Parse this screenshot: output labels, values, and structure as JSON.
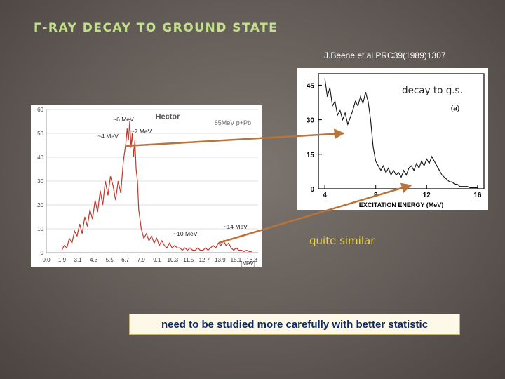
{
  "title": "Γ-RAY DECAY TO GROUND STATE",
  "citation": "J.Beene et al PRC39(1989)1307",
  "decay_label": "decay to g.s.",
  "similar_label": "quite similar",
  "note": "need to be studied more carefully with better statistic",
  "colors": {
    "title": "#c2e089",
    "arrow": "#b8743a",
    "histogram": "#c0392b",
    "note_text": "#0d2a66",
    "similar": "#e8d34a"
  },
  "chart_data": [
    {
      "type": "line",
      "title": "Hector",
      "subtitle": "85MeV p+Pb",
      "xlabel": "[MeV]",
      "ylabel": "",
      "ylim": [
        0,
        60
      ],
      "xlim": [
        0,
        16.5
      ],
      "grid": true,
      "x_ticks": [
        "0.0",
        "1.9",
        "3.1",
        "4.3",
        "5.5",
        "6.7",
        "7.9",
        "9.1",
        "10.3",
        "11.5",
        "12.7",
        "13.9",
        "15.1",
        "16.3"
      ],
      "y_ticks": [
        0,
        10,
        20,
        30,
        40,
        50,
        60
      ],
      "annotations": [
        {
          "text": "~4 MeV",
          "x": 4.0,
          "y": 48
        },
        {
          "text": "~6 MeV",
          "x": 5.2,
          "y": 55
        },
        {
          "text": "~7 MeV",
          "x": 6.6,
          "y": 50
        },
        {
          "text": "~10 MeV",
          "x": 9.9,
          "y": 7
        },
        {
          "text": "~14 MeV",
          "x": 13.8,
          "y": 10
        }
      ],
      "series": [
        {
          "values": [
            [
              1.2,
              1
            ],
            [
              1.4,
              3
            ],
            [
              1.6,
              2
            ],
            [
              1.8,
              6
            ],
            [
              2.0,
              4
            ],
            [
              2.2,
              9
            ],
            [
              2.4,
              7
            ],
            [
              2.6,
              12
            ],
            [
              2.8,
              8
            ],
            [
              3.0,
              15
            ],
            [
              3.2,
              11
            ],
            [
              3.4,
              18
            ],
            [
              3.6,
              14
            ],
            [
              3.8,
              22
            ],
            [
              4.0,
              17
            ],
            [
              4.2,
              26
            ],
            [
              4.4,
              20
            ],
            [
              4.6,
              30
            ],
            [
              4.8,
              24
            ],
            [
              5.0,
              32
            ],
            [
              5.2,
              28
            ],
            [
              5.4,
              22
            ],
            [
              5.6,
              30
            ],
            [
              5.8,
              25
            ],
            [
              6.0,
              38
            ],
            [
              6.1,
              42
            ],
            [
              6.2,
              46
            ],
            [
              6.3,
              52
            ],
            [
              6.4,
              47
            ],
            [
              6.5,
              55
            ],
            [
              6.6,
              44
            ],
            [
              6.7,
              50
            ],
            [
              6.8,
              40
            ],
            [
              6.9,
              47
            ],
            [
              7.0,
              35
            ],
            [
              7.1,
              30
            ],
            [
              7.2,
              18
            ],
            [
              7.4,
              10
            ],
            [
              7.6,
              6
            ],
            [
              7.8,
              8
            ],
            [
              8.0,
              5
            ],
            [
              8.2,
              7
            ],
            [
              8.4,
              4
            ],
            [
              8.6,
              6
            ],
            [
              8.8,
              3
            ],
            [
              9.0,
              5
            ],
            [
              9.2,
              3
            ],
            [
              9.4,
              2
            ],
            [
              9.6,
              4
            ],
            [
              9.8,
              2
            ],
            [
              10.0,
              3
            ],
            [
              10.2,
              2
            ],
            [
              10.4,
              2
            ],
            [
              10.6,
              1
            ],
            [
              10.8,
              2
            ],
            [
              11.0,
              1
            ],
            [
              11.2,
              2
            ],
            [
              11.4,
              1
            ],
            [
              11.6,
              1
            ],
            [
              11.8,
              2
            ],
            [
              12.0,
              1
            ],
            [
              12.2,
              1
            ],
            [
              12.4,
              2
            ],
            [
              12.6,
              1
            ],
            [
              12.8,
              2
            ],
            [
              13.0,
              3
            ],
            [
              13.2,
              2
            ],
            [
              13.4,
              4
            ],
            [
              13.6,
              3
            ],
            [
              13.8,
              5
            ],
            [
              14.0,
              3
            ],
            [
              14.2,
              4
            ],
            [
              14.4,
              2
            ],
            [
              14.6,
              1
            ],
            [
              14.8,
              2
            ],
            [
              15.0,
              1
            ],
            [
              15.2,
              1
            ],
            [
              15.4,
              0.5
            ],
            [
              15.6,
              1
            ],
            [
              15.8,
              0.5
            ],
            [
              16.0,
              0.5
            ]
          ]
        }
      ]
    },
    {
      "type": "line",
      "title": "",
      "xlabel": "EXCITATION ENERGY (MeV)",
      "ylabel": "",
      "legend_text": "(a)",
      "xlim": [
        3.5,
        16.5
      ],
      "ylim": [
        0,
        50
      ],
      "x_ticks": [
        "4",
        "8",
        "12",
        "16"
      ],
      "y_ticks": [
        "0",
        "15",
        "30",
        "45"
      ],
      "series": [
        {
          "values": [
            [
              4.0,
              48
            ],
            [
              4.2,
              40
            ],
            [
              4.4,
              44
            ],
            [
              4.6,
              36
            ],
            [
              4.8,
              38
            ],
            [
              5.0,
              32
            ],
            [
              5.2,
              34
            ],
            [
              5.4,
              30
            ],
            [
              5.6,
              33
            ],
            [
              5.8,
              28
            ],
            [
              6.0,
              31
            ],
            [
              6.2,
              34
            ],
            [
              6.4,
              38
            ],
            [
              6.6,
              36
            ],
            [
              6.8,
              40
            ],
            [
              7.0,
              37
            ],
            [
              7.2,
              42
            ],
            [
              7.4,
              38
            ],
            [
              7.6,
              30
            ],
            [
              7.8,
              18
            ],
            [
              8.0,
              12
            ],
            [
              8.2,
              10
            ],
            [
              8.4,
              8
            ],
            [
              8.6,
              10
            ],
            [
              8.8,
              7
            ],
            [
              9.0,
              9
            ],
            [
              9.2,
              6
            ],
            [
              9.4,
              8
            ],
            [
              9.6,
              6
            ],
            [
              9.8,
              7
            ],
            [
              10.0,
              5
            ],
            [
              10.2,
              8
            ],
            [
              10.4,
              6
            ],
            [
              10.6,
              9
            ],
            [
              10.8,
              10
            ],
            [
              11.0,
              8
            ],
            [
              11.2,
              11
            ],
            [
              11.4,
              9
            ],
            [
              11.6,
              12
            ],
            [
              11.8,
              10
            ],
            [
              12.0,
              13
            ],
            [
              12.2,
              11
            ],
            [
              12.4,
              14
            ],
            [
              12.6,
              12
            ],
            [
              12.8,
              10
            ],
            [
              13.0,
              8
            ],
            [
              13.2,
              6
            ],
            [
              13.4,
              5
            ],
            [
              13.6,
              4
            ],
            [
              13.8,
              3
            ],
            [
              14.0,
              3
            ],
            [
              14.2,
              2
            ],
            [
              14.4,
              2
            ],
            [
              14.6,
              1
            ],
            [
              14.8,
              1
            ],
            [
              15.0,
              1
            ],
            [
              15.2,
              1
            ],
            [
              15.4,
              0.5
            ],
            [
              15.6,
              0.5
            ],
            [
              15.8,
              0.5
            ],
            [
              16.0,
              0.5
            ]
          ]
        }
      ]
    }
  ]
}
